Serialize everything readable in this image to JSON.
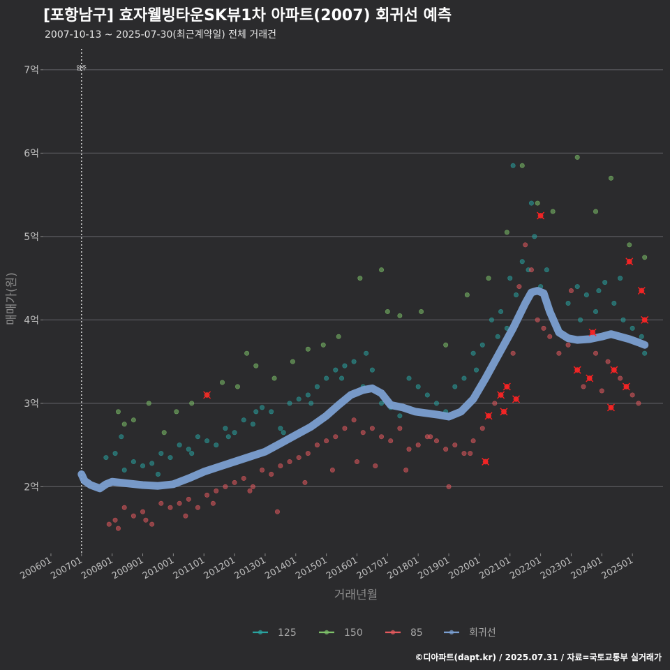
{
  "colors": {
    "background": "#2b2b2d",
    "grid": "#5a5a5e",
    "s125": "#2aa3a0",
    "s150": "#7ec16a",
    "s85": "#e45a5e",
    "trend": "#7b9fd1",
    "highlight": "#ff2020"
  },
  "chart_data": {
    "type": "scatter",
    "title": "[포항남구] 효자웰빙타운SK뷰1차 아파트(2007) 회귀선 예측",
    "subtitle": "2007-10-13 ~ 2025-07-30(최근계약일) 전체 거래건",
    "xlabel": "거래년월",
    "ylabel": "매매가(원)",
    "x_range": [
      2005.75,
      2026.0
    ],
    "y_range": [
      1.2,
      7.25
    ],
    "y_ticks": [
      {
        "value": 2,
        "label": "2억"
      },
      {
        "value": 3,
        "label": "3억"
      },
      {
        "value": 4,
        "label": "4억"
      },
      {
        "value": 5,
        "label": "5억"
      },
      {
        "value": 6,
        "label": "6억"
      },
      {
        "value": 7,
        "label": "7억"
      }
    ],
    "x_ticks": [
      {
        "value": 2006.0,
        "label": "200601"
      },
      {
        "value": 2007.0,
        "label": "200701"
      },
      {
        "value": 2008.0,
        "label": "200801"
      },
      {
        "value": 2009.0,
        "label": "200901"
      },
      {
        "value": 2010.0,
        "label": "201001"
      },
      {
        "value": 2011.0,
        "label": "201101"
      },
      {
        "value": 2012.0,
        "label": "201201"
      },
      {
        "value": 2013.0,
        "label": "201301"
      },
      {
        "value": 2014.0,
        "label": "201401"
      },
      {
        "value": 2015.0,
        "label": "201501"
      },
      {
        "value": 2016.0,
        "label": "201601"
      },
      {
        "value": 2017.0,
        "label": "201701"
      },
      {
        "value": 2018.0,
        "label": "201801"
      },
      {
        "value": 2019.0,
        "label": "201901"
      },
      {
        "value": 2020.0,
        "label": "202001"
      },
      {
        "value": 2021.0,
        "label": "202101"
      },
      {
        "value": 2022.0,
        "label": "202201"
      },
      {
        "value": 2023.0,
        "label": "202301"
      },
      {
        "value": 2024.0,
        "label": "202401"
      },
      {
        "value": 2025.0,
        "label": "202501"
      }
    ],
    "grid": true,
    "legend_position": "bottom",
    "annotation": {
      "label": "입주",
      "x": 2007.0
    },
    "series": [
      {
        "name": "125",
        "type": "scatter",
        "color": "#2aa3a0",
        "x": [
          2007.8,
          2008.1,
          2008.4,
          2008.7,
          2009.0,
          2009.3,
          2009.6,
          2009.9,
          2010.2,
          2010.5,
          2010.8,
          2011.1,
          2011.4,
          2011.7,
          2012.0,
          2012.3,
          2012.6,
          2012.9,
          2013.2,
          2013.5,
          2013.8,
          2014.1,
          2014.4,
          2014.7,
          2015.0,
          2015.3,
          2015.6,
          2015.9,
          2016.2,
          2016.5,
          2016.8,
          2017.1,
          2017.4,
          2017.7,
          2018.0,
          2018.3,
          2018.6,
          2018.9,
          2019.2,
          2019.5,
          2019.8,
          2020.1,
          2020.4,
          2020.7,
          2021.0,
          2021.2,
          2021.4,
          2021.6,
          2021.8,
          2022.0,
          2022.3,
          2022.6,
          2022.9,
          2023.2,
          2023.5,
          2023.8,
          2024.1,
          2024.4,
          2024.7,
          2025.0,
          2025.3,
          2008.3,
          2009.5,
          2010.6,
          2011.8,
          2012.7,
          2013.6,
          2014.5,
          2015.5,
          2016.3,
          2019.9,
          2020.6,
          2021.1,
          2021.7,
          2022.2,
          2023.3,
          2023.9,
          2024.6,
          2025.4,
          2020.9
        ],
        "y": [
          2.35,
          2.4,
          2.2,
          2.3,
          2.25,
          2.28,
          2.4,
          2.35,
          2.5,
          2.45,
          2.6,
          2.55,
          2.5,
          2.7,
          2.65,
          2.8,
          2.75,
          2.95,
          2.9,
          2.7,
          3.0,
          3.05,
          3.1,
          3.2,
          3.3,
          3.4,
          3.45,
          3.5,
          3.2,
          3.4,
          3.0,
          2.95,
          2.85,
          3.3,
          3.2,
          3.1,
          3.0,
          2.9,
          3.2,
          3.3,
          3.6,
          3.7,
          4.0,
          4.1,
          4.5,
          4.3,
          4.7,
          4.6,
          5.0,
          4.4,
          4.1,
          3.9,
          4.2,
          4.4,
          4.3,
          4.1,
          4.45,
          4.2,
          4.0,
          3.9,
          3.8,
          2.6,
          2.15,
          2.4,
          2.6,
          2.9,
          2.65,
          3.0,
          3.3,
          3.6,
          3.4,
          3.8,
          5.85,
          5.4,
          4.6,
          4.0,
          4.35,
          4.5,
          3.6,
          3.9
        ],
        "highlighted": []
      },
      {
        "name": "150",
        "type": "scatter",
        "color": "#7ec16a",
        "x": [
          2008.2,
          2008.7,
          2009.2,
          2009.7,
          2010.1,
          2010.6,
          2011.1,
          2011.6,
          2012.1,
          2012.7,
          2013.3,
          2013.9,
          2014.4,
          2014.9,
          2015.4,
          2016.1,
          2016.8,
          2017.4,
          2018.1,
          2018.9,
          2019.6,
          2020.3,
          2020.9,
          2021.4,
          2021.9,
          2022.4,
          2023.2,
          2023.8,
          2024.3,
          2024.9,
          2025.4,
          2008.4,
          2012.4,
          2017.0
        ],
        "y": [
          2.9,
          2.8,
          3.0,
          2.65,
          2.9,
          3.0,
          3.1,
          3.25,
          3.2,
          3.45,
          3.3,
          3.5,
          3.65,
          3.7,
          3.8,
          4.5,
          4.6,
          4.05,
          4.1,
          3.7,
          4.3,
          4.5,
          5.05,
          5.85,
          5.4,
          5.3,
          5.95,
          5.3,
          5.7,
          4.9,
          4.75,
          2.75,
          3.6,
          4.1
        ],
        "highlighted": [
          6
        ]
      },
      {
        "name": "85",
        "type": "scatter",
        "color": "#e45a5e",
        "x": [
          2007.9,
          2008.1,
          2008.4,
          2008.7,
          2009.0,
          2009.3,
          2009.6,
          2009.9,
          2010.2,
          2010.5,
          2010.8,
          2011.1,
          2011.4,
          2011.7,
          2012.0,
          2012.3,
          2012.6,
          2012.9,
          2013.2,
          2013.5,
          2013.8,
          2014.1,
          2014.4,
          2014.7,
          2015.0,
          2015.3,
          2015.6,
          2015.9,
          2016.2,
          2016.5,
          2016.8,
          2017.1,
          2017.4,
          2017.7,
          2018.0,
          2018.3,
          2018.6,
          2018.9,
          2019.2,
          2019.5,
          2019.8,
          2020.1,
          2020.3,
          2020.5,
          2020.7,
          2020.9,
          2021.1,
          2021.3,
          2021.5,
          2021.7,
          2021.9,
          2022.1,
          2022.3,
          2022.6,
          2022.9,
          2023.2,
          2023.4,
          2023.6,
          2023.8,
          2024.0,
          2024.2,
          2024.4,
          2024.6,
          2024.8,
          2025.0,
          2025.2,
          2025.4,
          2008.2,
          2009.1,
          2010.4,
          2011.3,
          2012.5,
          2013.4,
          2014.3,
          2015.2,
          2016.0,
          2016.6,
          2017.6,
          2018.4,
          2019.0,
          2019.7,
          2020.2,
          2020.8,
          2021.2,
          2022.0,
          2023.0,
          2023.7,
          2024.3,
          2024.9,
          2025.3
        ],
        "y": [
          1.55,
          1.6,
          1.75,
          1.65,
          1.7,
          1.55,
          1.8,
          1.75,
          1.8,
          1.85,
          1.75,
          1.9,
          1.95,
          2.0,
          2.05,
          2.1,
          2.0,
          2.2,
          2.15,
          2.25,
          2.3,
          2.35,
          2.4,
          2.5,
          2.55,
          2.6,
          2.7,
          2.8,
          2.65,
          2.7,
          2.6,
          2.55,
          2.7,
          2.45,
          2.5,
          2.6,
          2.55,
          2.45,
          2.5,
          2.4,
          2.55,
          2.7,
          2.85,
          3.0,
          3.1,
          3.2,
          3.6,
          4.4,
          4.9,
          4.6,
          4.0,
          3.9,
          3.8,
          3.6,
          3.7,
          3.4,
          3.2,
          3.3,
          3.6,
          3.15,
          3.5,
          3.4,
          3.3,
          3.2,
          3.1,
          3.0,
          4.0,
          1.5,
          1.6,
          1.65,
          1.8,
          1.95,
          1.7,
          2.05,
          2.2,
          2.3,
          2.25,
          2.2,
          2.6,
          2.0,
          2.4,
          2.3,
          2.9,
          3.05,
          5.25,
          4.35,
          3.85,
          2.95,
          4.7,
          4.35
        ],
        "highlighted": [
          42,
          44,
          45,
          55,
          57,
          61,
          63,
          66,
          81,
          82,
          83,
          84,
          86,
          87,
          88,
          89
        ]
      },
      {
        "name": "회귀선",
        "type": "line",
        "color": "#7b9fd1",
        "x": [
          2007.0,
          2007.1,
          2007.3,
          2007.6,
          2007.8,
          2008.0,
          2008.5,
          2009.0,
          2009.5,
          2010.0,
          2010.5,
          2011.0,
          2011.5,
          2012.0,
          2012.5,
          2013.0,
          2013.5,
          2014.0,
          2014.5,
          2015.0,
          2015.4,
          2015.8,
          2016.2,
          2016.5,
          2016.8,
          2017.1,
          2017.5,
          2017.9,
          2018.3,
          2018.7,
          2019.0,
          2019.4,
          2019.8,
          2020.2,
          2020.5,
          2020.8,
          2021.1,
          2021.3,
          2021.5,
          2021.7,
          2021.9,
          2022.1,
          2022.3,
          2022.6,
          2022.9,
          2023.2,
          2023.6,
          2024.0,
          2024.3,
          2024.6,
          2024.9,
          2025.2,
          2025.4
        ],
        "y": [
          2.15,
          2.07,
          2.02,
          1.98,
          2.03,
          2.06,
          2.04,
          2.02,
          2.01,
          2.03,
          2.1,
          2.18,
          2.24,
          2.3,
          2.36,
          2.42,
          2.52,
          2.62,
          2.72,
          2.85,
          2.98,
          3.1,
          3.16,
          3.18,
          3.12,
          2.98,
          2.95,
          2.9,
          2.88,
          2.86,
          2.84,
          2.9,
          3.05,
          3.3,
          3.5,
          3.7,
          3.9,
          4.05,
          4.2,
          4.33,
          4.35,
          4.32,
          4.1,
          3.85,
          3.78,
          3.76,
          3.77,
          3.8,
          3.83,
          3.8,
          3.77,
          3.73,
          3.7
        ],
        "highlighted": []
      }
    ]
  },
  "caption": "©디아파트(dapt.kr) / 2025.07.31 / 자료=국토교통부 실거래가"
}
